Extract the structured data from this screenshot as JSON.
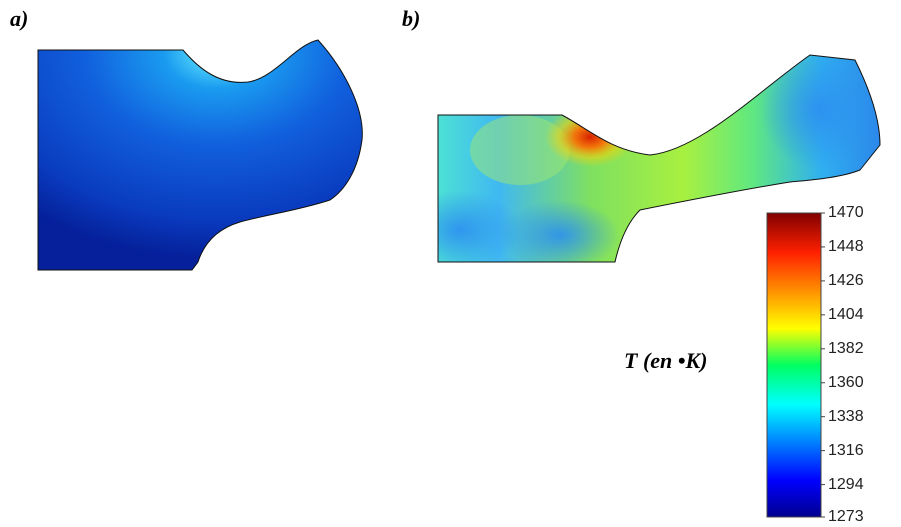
{
  "panels": [
    {
      "label": "a)"
    },
    {
      "label": "b)"
    }
  ],
  "colorbar": {
    "label": "T (en •K)",
    "ticks": [
      1470,
      1448,
      1426,
      1404,
      1382,
      1360,
      1338,
      1316,
      1294,
      1273
    ]
  }
}
